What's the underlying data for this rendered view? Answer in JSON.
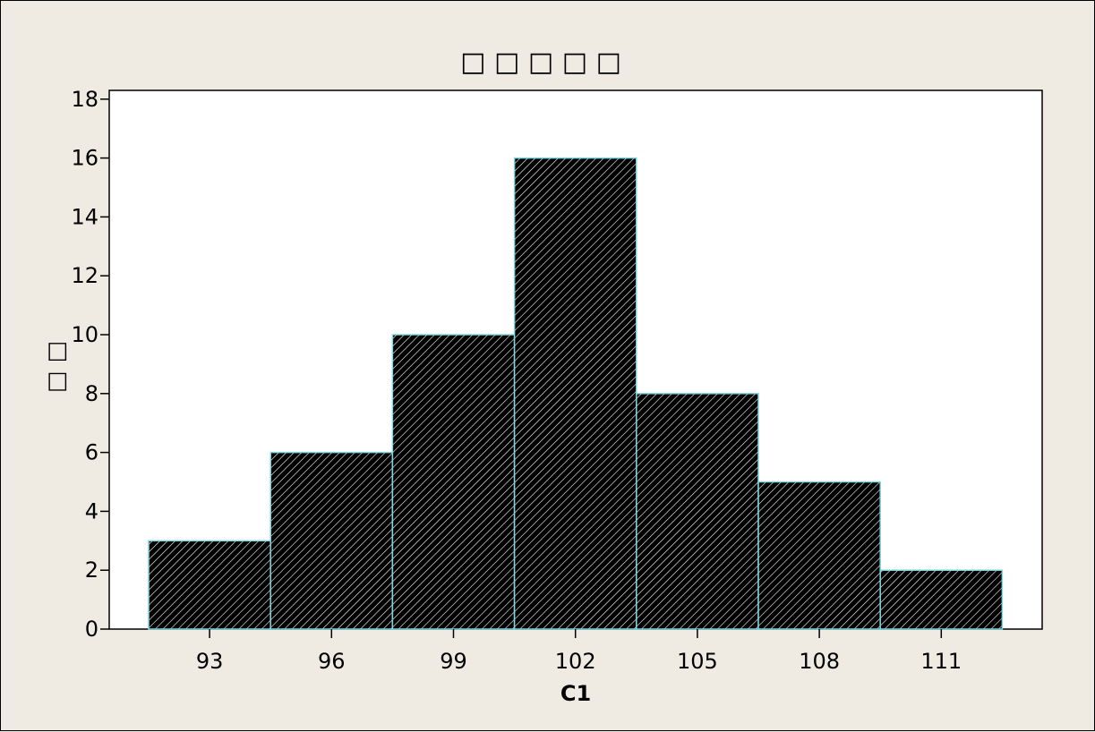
{
  "chart_data": {
    "type": "bar",
    "title": "□ □ □ □ □",
    "xlabel": "C1",
    "ylabel": "□ □",
    "categories": [
      "93",
      "96",
      "99",
      "102",
      "105",
      "108",
      "111"
    ],
    "values": [
      3,
      6,
      10,
      16,
      8,
      5,
      2
    ],
    "ylim": [
      0,
      18
    ],
    "y_ticks": [
      0,
      2,
      4,
      6,
      8,
      10,
      12,
      14,
      16,
      18
    ],
    "y_tick_labels": [
      "0",
      "2",
      "4",
      "6",
      "8",
      "10",
      "12",
      "14",
      "16",
      "18"
    ],
    "grid": false,
    "legend": "none",
    "bar_fill": "#000000",
    "bar_hatch": "#ffffff",
    "bar_edge": "#7fd8e0",
    "plot_background": "#ffffff",
    "figure_background": "#efebe2"
  }
}
